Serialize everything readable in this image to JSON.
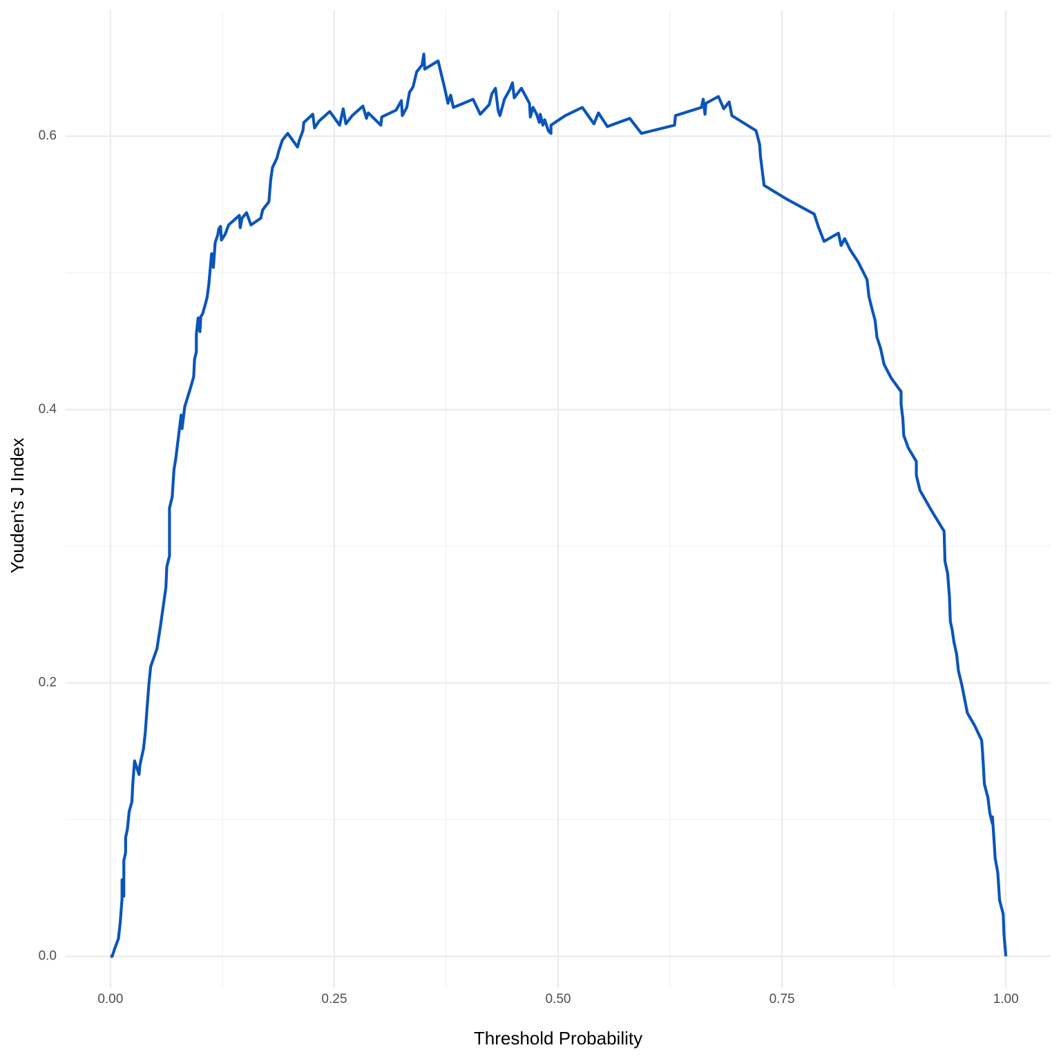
{
  "chart_data": {
    "type": "line",
    "x_label": "Threshold Probability",
    "y_label": "Youden's J Index",
    "xlim": [
      -0.05,
      1.05
    ],
    "ylim": [
      -0.023,
      0.692
    ],
    "xticks": [
      {
        "value": 0,
        "label": "0.00"
      },
      {
        "value": 0.25,
        "label": "0.25"
      },
      {
        "value": 0.5,
        "label": "0.50"
      },
      {
        "value": 0.75,
        "label": "0.75"
      },
      {
        "value": 1,
        "label": "1.00"
      }
    ],
    "yticks": [
      {
        "value": 0,
        "label": "0.0"
      },
      0.2,
      0.4,
      0.6
    ],
    "x_minor_ticks": [
      0.125,
      0.375,
      0.625,
      0.875
    ],
    "y_minor_ticks": [
      0.1,
      0.3,
      0.5
    ],
    "grid": true,
    "x": [
      0,
      0.002,
      0.005,
      0.009,
      0.011,
      0.013,
      0.013,
      0.015,
      0.015,
      0.017,
      0.017,
      0.019,
      0.021,
      0.024,
      0.025,
      0.027,
      0.03,
      0.032,
      0.033,
      0.037,
      0.039,
      0.041,
      0.043,
      0.045,
      0.052,
      0.056,
      0.062,
      0.063,
      0.066,
      0.066,
      0.069,
      0.071,
      0.073,
      0.076,
      0.079,
      0.08,
      0.083,
      0.09,
      0.093,
      0.094,
      0.096,
      0.096,
      0.098,
      0.1,
      0.101,
      0.103,
      0.106,
      0.108,
      0.11,
      0.113,
      0.115,
      0.117,
      0.12,
      0.121,
      0.123,
      0.124,
      0.128,
      0.132,
      0.144,
      0.145,
      0.147,
      0.152,
      0.157,
      0.168,
      0.17,
      0.177,
      0.179,
      0.181,
      0.186,
      0.188,
      0.192,
      0.198,
      0.209,
      0.211,
      0.215,
      0.216,
      0.226,
      0.228,
      0.233,
      0.245,
      0.256,
      0.26,
      0.263,
      0.27,
      0.282,
      0.286,
      0.288,
      0.302,
      0.303,
      0.319,
      0.325,
      0.326,
      0.331,
      0.334,
      0.338,
      0.342,
      0.348,
      0.35,
      0.351,
      0.366,
      0.37,
      0.373,
      0.377,
      0.38,
      0.383,
      0.405,
      0.413,
      0.423,
      0.426,
      0.43,
      0.433,
      0.435,
      0.44,
      0.446,
      0.449,
      0.451,
      0.459,
      0.468,
      0.469,
      0.472,
      0.476,
      0.479,
      0.48,
      0.483,
      0.485,
      0.489,
      0.492,
      0.492,
      0.508,
      0.527,
      0.54,
      0.545,
      0.555,
      0.58,
      0.593,
      0.63,
      0.631,
      0.66,
      0.662,
      0.664,
      0.665,
      0.679,
      0.685,
      0.691,
      0.694,
      0.721,
      0.725,
      0.726,
      0.73,
      0.755,
      0.786,
      0.791,
      0.797,
      0.813,
      0.816,
      0.82,
      0.826,
      0.835,
      0.845,
      0.847,
      0.85,
      0.854,
      0.856,
      0.86,
      0.864,
      0.872,
      0.883,
      0.883,
      0.885,
      0.886,
      0.891,
      0.9,
      0.9,
      0.904,
      0.917,
      0.931,
      0.932,
      0.935,
      0.937,
      0.938,
      0.94,
      0.942,
      0.945,
      0.947,
      0.951,
      0.954,
      0.957,
      0.965,
      0.973,
      0.974,
      0.975,
      0.976,
      0.98,
      0.982,
      0.985,
      0.985,
      0.987,
      0.988,
      0.991,
      0.993,
      0.997,
      0.998,
      1.0
    ],
    "series": [
      {
        "color": "#0b55b9",
        "values": [
          0,
          0,
          0.006,
          0.013,
          0.025,
          0.042,
          0.056,
          0.044,
          0.07,
          0.076,
          0.087,
          0.093,
          0.106,
          0.113,
          0.126,
          0.143,
          0.137,
          0.133,
          0.14,
          0.152,
          0.164,
          0.182,
          0.199,
          0.212,
          0.225,
          0.242,
          0.27,
          0.285,
          0.293,
          0.328,
          0.336,
          0.356,
          0.364,
          0.38,
          0.396,
          0.386,
          0.402,
          0.417,
          0.424,
          0.437,
          0.442,
          0.455,
          0.467,
          0.457,
          0.468,
          0.47,
          0.477,
          0.482,
          0.492,
          0.514,
          0.504,
          0.522,
          0.528,
          0.532,
          0.534,
          0.524,
          0.528,
          0.535,
          0.542,
          0.533,
          0.54,
          0.544,
          0.535,
          0.54,
          0.546,
          0.552,
          0.568,
          0.577,
          0.584,
          0.589,
          0.597,
          0.602,
          0.592,
          0.597,
          0.604,
          0.61,
          0.616,
          0.606,
          0.611,
          0.618,
          0.608,
          0.62,
          0.609,
          0.615,
          0.622,
          0.613,
          0.617,
          0.608,
          0.614,
          0.619,
          0.626,
          0.615,
          0.621,
          0.632,
          0.636,
          0.647,
          0.652,
          0.66,
          0.649,
          0.655,
          0.644,
          0.636,
          0.624,
          0.63,
          0.621,
          0.627,
          0.616,
          0.623,
          0.631,
          0.635,
          0.619,
          0.615,
          0.627,
          0.634,
          0.639,
          0.628,
          0.635,
          0.624,
          0.614,
          0.621,
          0.616,
          0.61,
          0.616,
          0.608,
          0.612,
          0.604,
          0.602,
          0.608,
          0.615,
          0.621,
          0.609,
          0.617,
          0.607,
          0.613,
          0.602,
          0.608,
          0.615,
          0.621,
          0.627,
          0.616,
          0.624,
          0.629,
          0.62,
          0.625,
          0.615,
          0.604,
          0.594,
          0.585,
          0.564,
          0.554,
          0.543,
          0.533,
          0.523,
          0.529,
          0.52,
          0.525,
          0.517,
          0.508,
          0.495,
          0.483,
          0.475,
          0.465,
          0.453,
          0.445,
          0.433,
          0.423,
          0.413,
          0.404,
          0.393,
          0.381,
          0.372,
          0.362,
          0.352,
          0.341,
          0.326,
          0.311,
          0.289,
          0.28,
          0.263,
          0.245,
          0.239,
          0.23,
          0.221,
          0.209,
          0.198,
          0.188,
          0.178,
          0.169,
          0.158,
          0.149,
          0.138,
          0.126,
          0.116,
          0.105,
          0.097,
          0.102,
          0.083,
          0.072,
          0.061,
          0.041,
          0.031,
          0.015,
          0
        ]
      }
    ]
  }
}
